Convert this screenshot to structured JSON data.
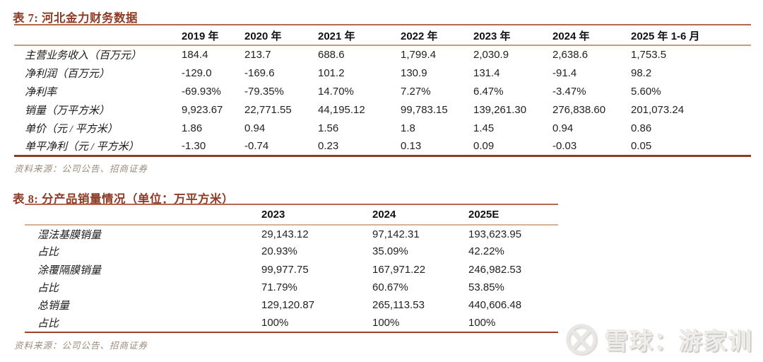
{
  "colors": {
    "title_text": "#8f3c26",
    "title_rule": "#b06a4c",
    "t7_header_rule": "#c89a80",
    "t7_bottom_rule": "#8f3c26",
    "t8_header_rule": "#d8b096",
    "t8_bottom_rule": "#9c4327",
    "source_text": "#9b8a7c",
    "body_text": "#222222",
    "watermark_text": "#efedea"
  },
  "table7": {
    "title": "表 7: 河北金力财务数据",
    "columns": [
      "2019 年",
      "2020 年",
      "2021 年",
      "2022 年",
      "2023 年",
      "2024 年",
      "2025 年 1-6 月"
    ],
    "rows": [
      {
        "label": "主营业务收入（百万元）",
        "values": [
          "184.4",
          "213.7",
          "688.6",
          "1,799.4",
          "2,030.9",
          "2,638.6",
          "1,753.5"
        ]
      },
      {
        "label": "净利润（百万元）",
        "values": [
          "-129.0",
          "-169.6",
          "101.2",
          "130.9",
          "131.4",
          "-91.4",
          "98.2"
        ]
      },
      {
        "label": "净利率",
        "values": [
          "-69.93%",
          "-79.35%",
          "14.70%",
          "7.27%",
          "6.47%",
          "-3.47%",
          "5.60%"
        ]
      },
      {
        "label": "销量（万平方米）",
        "values": [
          "9,923.67",
          "22,771.55",
          "44,195.12",
          "99,783.15",
          "139,261.30",
          "276,838.60",
          "201,073.24"
        ]
      },
      {
        "label": "单价（元 / 平方米）",
        "values": [
          "1.86",
          "0.94",
          "1.56",
          "1.8",
          "1.45",
          "0.94",
          "0.86"
        ]
      },
      {
        "label": "单平净利（元 / 平方米）",
        "values": [
          "-1.30",
          "-0.74",
          "0.23",
          "0.13",
          "0.09",
          "-0.03",
          "0.05"
        ]
      }
    ],
    "source": "资料来源：公司公告、招商证券"
  },
  "table8": {
    "title": "表 8: 分产品销量情况（单位：万平方米）",
    "columns": [
      "2023",
      "2024",
      "2025E"
    ],
    "rows": [
      {
        "label": "湿法基膜销量",
        "values": [
          "29,143.12",
          "97,142.31",
          "193,623.95"
        ]
      },
      {
        "label": "占比",
        "values": [
          "20.93%",
          "35.09%",
          "42.22%"
        ]
      },
      {
        "label": "涂覆隔膜销量",
        "values": [
          "99,977.75",
          "167,971.22",
          "246,982.53"
        ]
      },
      {
        "label": "占比",
        "values": [
          "71.79%",
          "60.67%",
          "53.85%"
        ]
      },
      {
        "label": "总销量",
        "values": [
          "129,120.87",
          "265,113.53",
          "440,606.48"
        ]
      },
      {
        "label": "占比",
        "values": [
          "100%",
          "100%",
          "100%"
        ]
      }
    ],
    "source": "资料来源：公司公告、招商证券"
  },
  "watermark": {
    "icon": "xueqiu-logo",
    "text": "雪球：游家训"
  }
}
